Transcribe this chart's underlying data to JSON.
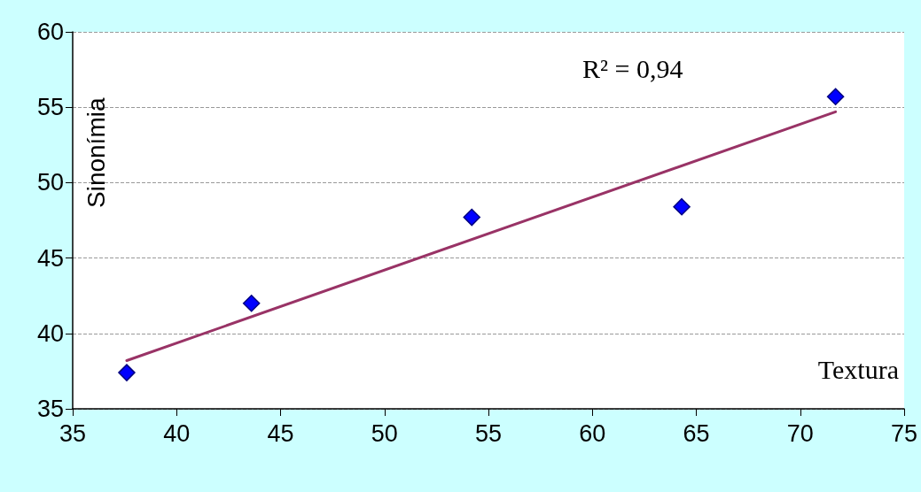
{
  "chart_data": {
    "type": "scatter",
    "xlabel": "Textura",
    "ylabel": "Sinonímia",
    "annotations": [
      "R² = 0,94"
    ],
    "series": [
      {
        "color": "#0000ff",
        "x": [
          37.6,
          43.6,
          54.2,
          64.3,
          71.7
        ],
        "values": [
          37.4,
          42.0,
          47.7,
          48.4,
          55.7
        ],
        "marker": "diamond"
      },
      {
        "type": "line",
        "color": "#993366",
        "x": [
          37.6,
          71.7
        ],
        "values": [
          38.2,
          54.7
        ],
        "marker": "none",
        "line_style": "solid"
      }
    ],
    "xlim": [
      35,
      75
    ],
    "xticks": [
      35,
      40,
      45,
      50,
      55,
      60,
      65,
      70,
      75
    ],
    "ylim": [
      35,
      60
    ],
    "yticks": [
      35,
      40,
      45,
      50,
      55,
      60
    ],
    "grid": "y"
  }
}
